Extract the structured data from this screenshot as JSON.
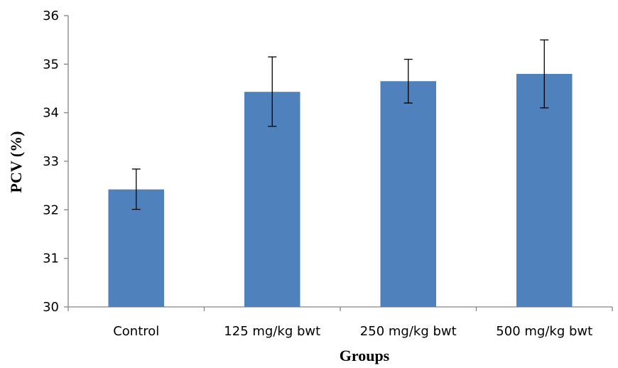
{
  "chart_data": {
    "type": "bar",
    "title": "",
    "xlabel": "Groups",
    "ylabel": "PCV (%)",
    "categories": [
      "Control",
      "125 mg/kg bwt",
      "250 mg/kg bwt",
      "500 mg/kg bwt"
    ],
    "values": [
      32.42,
      34.43,
      34.65,
      34.8
    ],
    "error_low": [
      32.01,
      33.72,
      34.2,
      34.1
    ],
    "error_high": [
      32.84,
      35.15,
      35.1,
      35.5
    ],
    "ylim": [
      30,
      36
    ],
    "yticks": [
      30,
      31,
      32,
      33,
      34,
      35,
      36
    ],
    "grid": false,
    "legend": "none",
    "colors": {
      "bar": "#4f81bd",
      "axis": "#868686",
      "error_bar": "#000000"
    }
  }
}
